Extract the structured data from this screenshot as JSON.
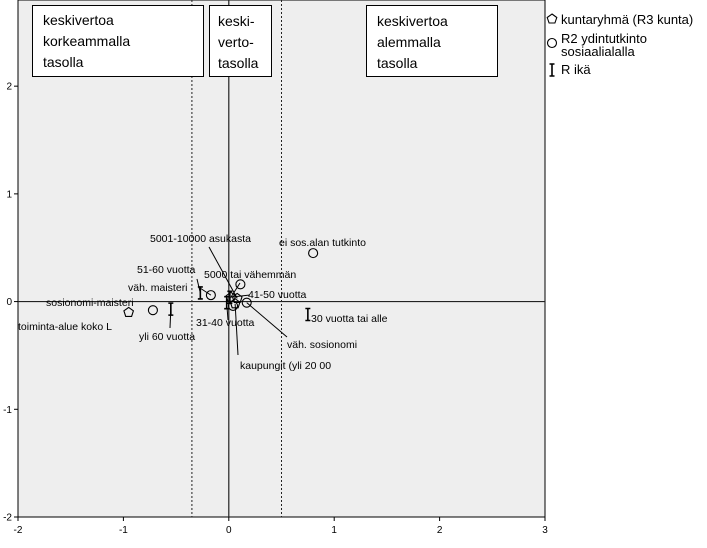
{
  "chart_data": {
    "type": "scatter",
    "xlim": [
      -2,
      3
    ],
    "ylim": [
      -2,
      2.8
    ],
    "x_ticks": [
      "-2",
      "-1",
      "0",
      "1",
      "2",
      "3"
    ],
    "y_ticks": [
      "-2",
      "-1",
      "0",
      "1",
      "2"
    ],
    "grid": false,
    "background_color": "#eeeeee",
    "reference_lines": {
      "x_zero": 0,
      "y_zero": 0,
      "dotted_x": [
        -0.35,
        0.5
      ]
    },
    "regions": [
      {
        "lines": [
          "keskivertoa",
          "korkeammalla",
          "tasolla"
        ]
      },
      {
        "lines": [
          "keski-",
          "verto-",
          "tasolla"
        ]
      },
      {
        "lines": [
          "keskivertoa",
          "alemmalla",
          "tasolla"
        ]
      }
    ],
    "legend": {
      "position": "right",
      "entries": [
        {
          "symbol": "pentagon",
          "lines": [
            "kuntaryhmä (R3 kunta)"
          ]
        },
        {
          "symbol": "circle",
          "lines": [
            "R2 ydintutkinto",
            "sosiaalialalla"
          ]
        },
        {
          "symbol": "ibeam",
          "lines": [
            "R ikä"
          ]
        }
      ]
    },
    "series": [
      {
        "name": "kuntaryhmä (R3 kunta)",
        "symbol": "pentagon",
        "points": [
          {
            "label": "toiminta-alue koko L",
            "x": -0.95,
            "y": -0.1
          },
          {
            "label": "5000 tai vähemmän",
            "x": 0.02,
            "y": 0.04
          },
          {
            "label": "5001-10000 asukasta",
            "x": 0.08,
            "y": 0.03
          },
          {
            "label": "kaupungit (yli 20 00",
            "x": 0.06,
            "y": -0.02
          }
        ]
      },
      {
        "name": "R2 ydintutkinto sosiaalialalla",
        "symbol": "circle",
        "points": [
          {
            "label": "sosionomi-maisteri",
            "x": -0.72,
            "y": -0.08
          },
          {
            "label": "väh. maisteri",
            "x": -0.17,
            "y": 0.06
          },
          {
            "label": "ei sos.alan tutkinto",
            "x": 0.8,
            "y": 0.45
          },
          {
            "label": "väh. sosionomi",
            "x": 0.17,
            "y": -0.01
          },
          {
            "label": "",
            "x": 0.11,
            "y": 0.16
          },
          {
            "label": "",
            "x": 0.04,
            "y": -0.04
          }
        ]
      },
      {
        "name": "R ikä",
        "symbol": "ibeam",
        "points": [
          {
            "label": "yli 60 vuotta",
            "x": -0.55,
            "y": -0.07
          },
          {
            "label": "51-60 vuotta",
            "x": -0.27,
            "y": 0.08
          },
          {
            "label": "41-50 vuotta",
            "x": 0.01,
            "y": 0.04
          },
          {
            "label": "31-40 vuotta",
            "x": -0.02,
            "y": -0.01
          },
          {
            "label": "30 vuotta tai alle",
            "x": 0.75,
            "y": -0.12
          }
        ]
      }
    ]
  }
}
